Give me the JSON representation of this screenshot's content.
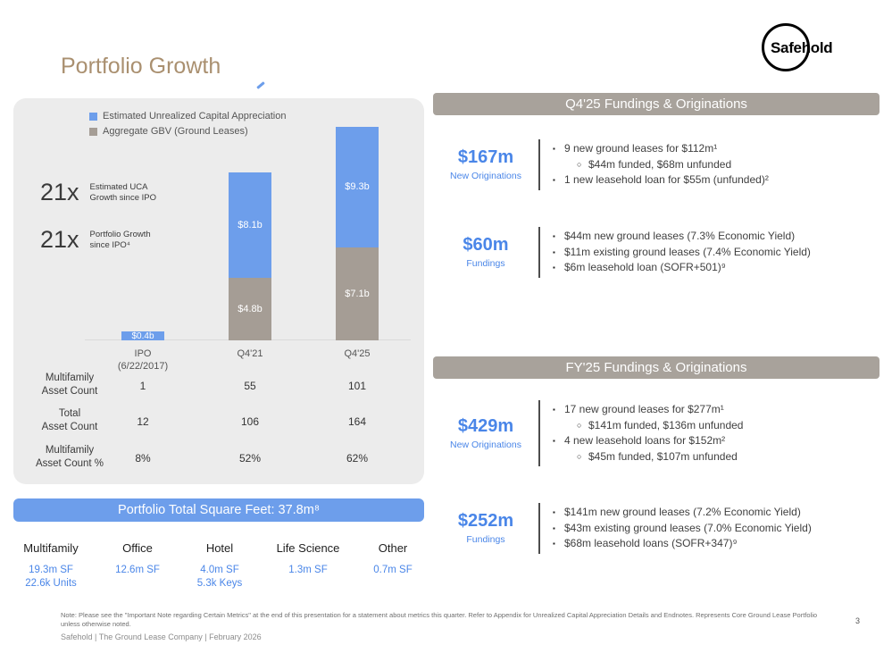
{
  "slide": {
    "title": "Portfolio Growth",
    "logo_text": "Safehold",
    "page_number": "3",
    "footer_note": "Note: Please see the \"Important Note regarding Certain Metrics\" at the end of this presentation for a statement about metrics this quarter. Refer to Appendix for Unrealized Capital Appreciation Details and Endnotes. Represents Core Ground Lease Portfolio unless otherwise noted.",
    "footer_brand": "Safehold | The Ground Lease Company | February 2026"
  },
  "colors": {
    "accent_blue": "#6d9eeb",
    "text_blue": "#4a86e8",
    "bar_gray": "#a59d95",
    "banner_gray": "#a8a29b",
    "title_tan": "#aa9070",
    "card_bg": "#ececec"
  },
  "portfolio_panel": {
    "legend": [
      {
        "label": "Estimated Unrealized Capital Appreciation",
        "color": "#6d9eeb"
      },
      {
        "label": "Aggregate GBV (Ground Leases)",
        "color": "#a59d95"
      }
    ],
    "stats": [
      {
        "value": "21x",
        "line1": "Estimated UCA",
        "line2": "Growth since IPO"
      },
      {
        "value": "21x",
        "line1": "Portfolio Growth",
        "line2": "since IPO⁴"
      }
    ],
    "x_labels": [
      {
        "line1": "IPO",
        "line2": "(6/22/2017)"
      },
      {
        "line1": "Q4'21",
        "line2": ""
      },
      {
        "line1": "Q4'25",
        "line2": ""
      }
    ],
    "table_rows": [
      {
        "line1": "Multifamily",
        "line2": "Asset Count",
        "values": [
          "1",
          "55",
          "101"
        ]
      },
      {
        "line1": "Total",
        "line2": "Asset Count",
        "values": [
          "12",
          "106",
          "164"
        ]
      },
      {
        "line1": "Multifamily",
        "line2": "Asset Count %",
        "values": [
          "8%",
          "52%",
          "62%"
        ]
      }
    ],
    "sqft_banner": "Portfolio Total Square Feet: 37.8m⁸",
    "property_types": [
      {
        "name": "Multifamily",
        "lines": [
          "19.3m SF",
          "22.6k Units"
        ]
      },
      {
        "name": "Office",
        "lines": [
          "12.6m SF"
        ]
      },
      {
        "name": "Hotel",
        "lines": [
          "4.0m SF",
          "5.3k Keys"
        ]
      },
      {
        "name": "Life Science",
        "lines": [
          "1.3m SF"
        ]
      },
      {
        "name": "Other",
        "lines": [
          "0.7m SF"
        ]
      }
    ]
  },
  "chart_data": {
    "type": "bar",
    "stacked": true,
    "title": "Portfolio Growth",
    "categories": [
      "IPO (6/22/2017)",
      "Q4'21",
      "Q4'25"
    ],
    "series": [
      {
        "name": "Aggregate GBV (Ground Leases)",
        "color": "#a59d95",
        "values": [
          0.4,
          4.8,
          7.1
        ],
        "labels": [
          "$0.4b",
          "$4.8b",
          "$7.1b"
        ]
      },
      {
        "name": "Estimated Unrealized Capital Appreciation",
        "color": "#6d9eeb",
        "values": [
          0,
          8.1,
          9.3
        ],
        "labels": [
          "",
          "$8.1b",
          "$9.3b"
        ]
      }
    ],
    "unit": "USD billions",
    "ylim": [
      0,
      17
    ],
    "legend_position": "top-center",
    "grid": false
  },
  "right_sections": [
    {
      "banner": "Q4'25 Fundings & Originations",
      "groups": [
        {
          "value": "$167m",
          "label": "New Originations",
          "bullets": [
            {
              "level": 1,
              "text": "9 new ground leases for $112m¹"
            },
            {
              "level": 2,
              "text": "$44m funded, $68m unfunded"
            },
            {
              "level": 1,
              "text": "1 new leasehold loan for $55m (unfunded)²"
            }
          ]
        },
        {
          "value": "$60m",
          "label": "Fundings",
          "bullets": [
            {
              "level": 1,
              "text": "$44m new ground leases (7.3% Economic Yield)"
            },
            {
              "level": 1,
              "text": "$11m existing ground leases (7.4% Economic Yield)"
            },
            {
              "level": 1,
              "text": "$6m leasehold loan (SOFR+501)⁹"
            }
          ]
        }
      ]
    },
    {
      "banner": "FY'25 Fundings & Originations",
      "groups": [
        {
          "value": "$429m",
          "label": "New Originations",
          "bullets": [
            {
              "level": 1,
              "text": "17 new ground leases for $277m¹"
            },
            {
              "level": 2,
              "text": "$141m funded, $136m unfunded"
            },
            {
              "level": 1,
              "text": "4 new leasehold loans for $152m²"
            },
            {
              "level": 2,
              "text": "$45m funded, $107m unfunded"
            }
          ]
        },
        {
          "value": "$252m",
          "label": "Fundings",
          "bullets": [
            {
              "level": 1,
              "text": "$141m new ground leases (7.2% Economic Yield)"
            },
            {
              "level": 1,
              "text": "$43m existing ground leases (7.0% Economic Yield)"
            },
            {
              "level": 1,
              "text": "$68m leasehold loans (SOFR+347)⁹"
            }
          ]
        }
      ]
    }
  ]
}
